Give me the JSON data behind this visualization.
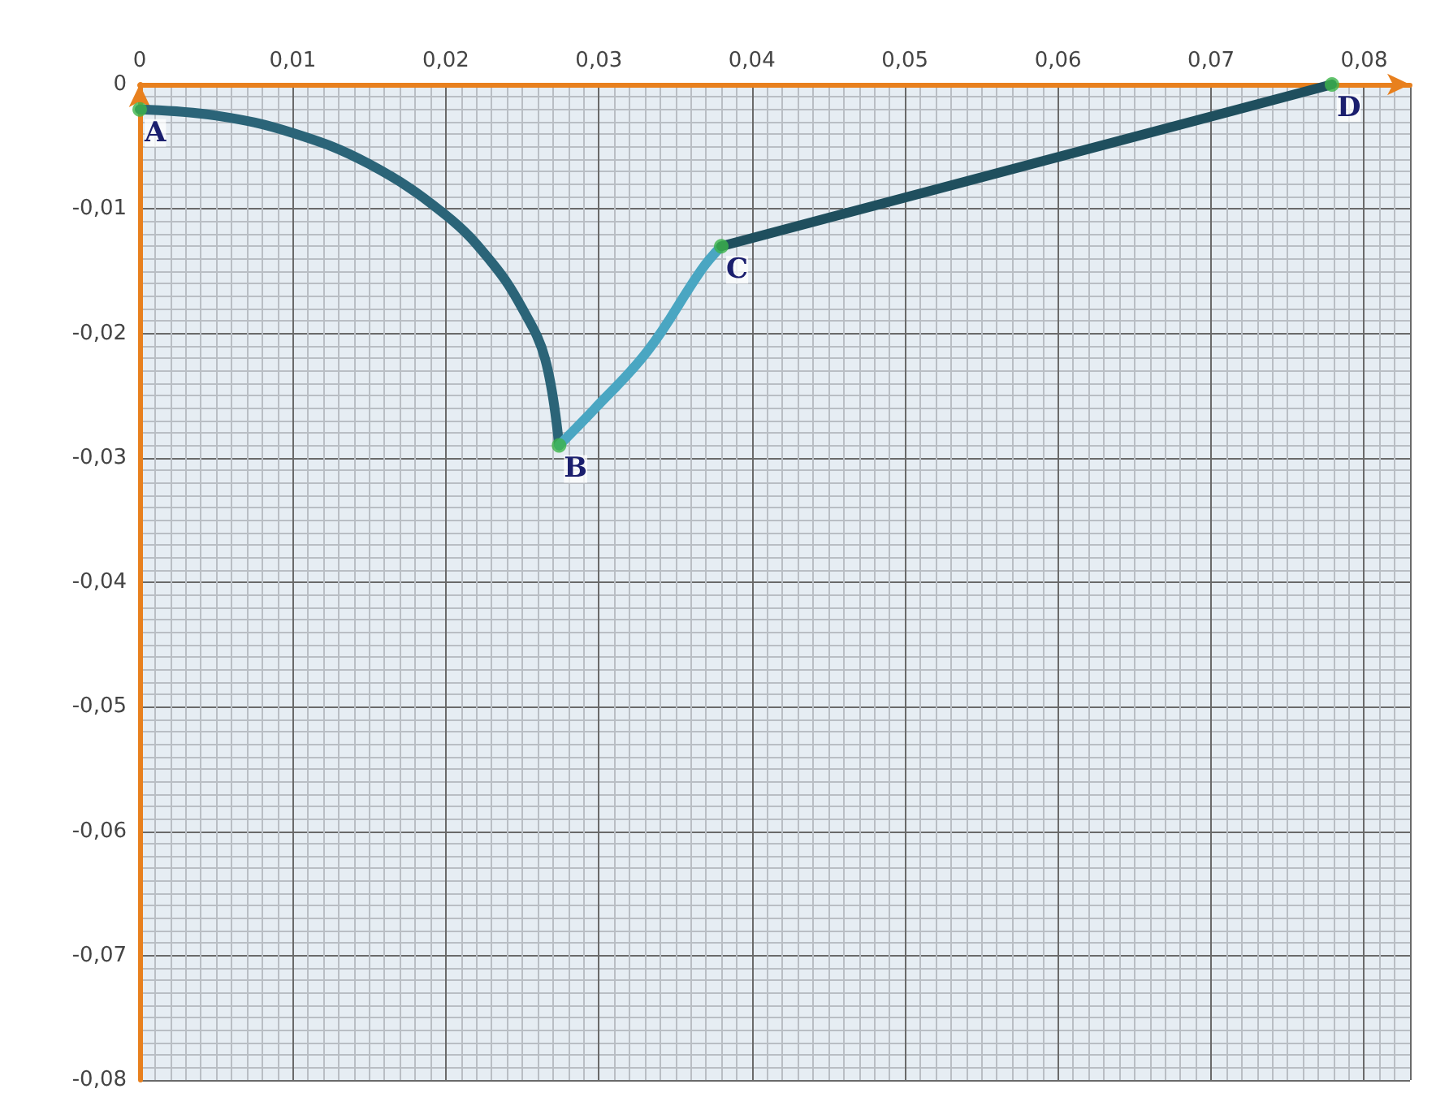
{
  "chart_data": {
    "type": "line",
    "xlim": [
      0,
      0.083
    ],
    "ylim": [
      -0.08,
      0
    ],
    "xticks": [
      {
        "value": 0,
        "label": "0"
      },
      {
        "value": 0.01,
        "label": "0,01"
      },
      {
        "value": 0.02,
        "label": "0,02"
      },
      {
        "value": 0.03,
        "label": "0,03"
      },
      {
        "value": 0.04,
        "label": "0,04"
      },
      {
        "value": 0.05,
        "label": "0,05"
      },
      {
        "value": 0.06,
        "label": "0,06"
      },
      {
        "value": 0.07,
        "label": "0,07"
      },
      {
        "value": 0.08,
        "label": "0,08"
      }
    ],
    "yticks": [
      {
        "value": 0,
        "label": "0"
      },
      {
        "value": -0.01,
        "label": "-0,01"
      },
      {
        "value": -0.02,
        "label": "-0,02"
      },
      {
        "value": -0.03,
        "label": "-0,03"
      },
      {
        "value": -0.04,
        "label": "-0,04"
      },
      {
        "value": -0.05,
        "label": "-0,05"
      },
      {
        "value": -0.06,
        "label": "-0,06"
      },
      {
        "value": -0.07,
        "label": "-0,07"
      },
      {
        "value": -0.08,
        "label": "-0,08"
      }
    ],
    "grid": true,
    "series": [
      {
        "color": "#2b6478",
        "marker": "none",
        "x": [
          0,
          0.005,
          0.01,
          0.015,
          0.02,
          0.023,
          0.025,
          0.0265,
          0.0274
        ],
        "values": [
          -0.002,
          -0.0025,
          -0.0039,
          -0.0064,
          -0.0105,
          -0.0143,
          -0.018,
          -0.0221,
          -0.029
        ]
      },
      {
        "color": "#4aa6c2",
        "marker": "none",
        "x": [
          0.0274,
          0.0297,
          0.0332,
          0.0367,
          0.038
        ],
        "values": [
          -0.029,
          -0.0261,
          -0.0214,
          -0.0149,
          -0.013
        ]
      },
      {
        "color": "#1f4f5e",
        "marker": "none",
        "x": [
          0.038,
          0.0779
        ],
        "values": [
          -0.013,
          0
        ]
      },
      {
        "type": "scatter",
        "color": "#3cb44a",
        "marker": "circle",
        "x": [
          0,
          0.0274,
          0.038,
          0.0779
        ],
        "values": [
          -0.002,
          -0.029,
          -0.013,
          0
        ]
      }
    ],
    "annotations": [
      {
        "text": "A",
        "x": 0,
        "y": -0.002
      },
      {
        "text": "B",
        "x": 0.0274,
        "y": -0.029
      },
      {
        "text": "C",
        "x": 0.038,
        "y": -0.013
      },
      {
        "text": "D",
        "x": 0.0779,
        "y": 0
      }
    ]
  }
}
